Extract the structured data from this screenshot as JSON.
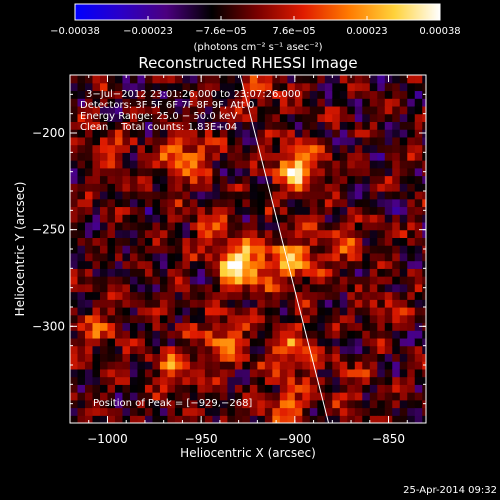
{
  "colorbar": {
    "min": -0.00038,
    "max": 0.00038,
    "tick_labels": [
      "−0.00038",
      "−0.00023",
      "−7.6e−05",
      "7.6e−05",
      "0.00023",
      "0.00038"
    ],
    "unit_label": "(photons cm⁻² s⁻¹ asec⁻²)",
    "colors": [
      "#0000ff",
      "#2a00c8",
      "#4b007f",
      "#000000",
      "#7a0000",
      "#e01b00",
      "#ff7a00",
      "#ffd23a",
      "#ffffff"
    ]
  },
  "title": "Reconstructed RHESSI Image",
  "info": {
    "time_range": "3−Jul−2012 23:01:26.000 to 23:07:26.000",
    "detectors": "Detectors: 3F 5F 6F 7F 8F 9F, Att 0",
    "energy": "Energy Range: 25.0 − 50.0 keV",
    "clean": "Clean    Total counts: 1.83E+04",
    "peak": "Position of Peak = [−929,−268]"
  },
  "footer": {
    "timestamp": "25-Apr-2014 09:32"
  },
  "chart_data": {
    "type": "heatmap",
    "title": "Reconstructed RHESSI Image",
    "xlabel": "Heliocentric X (arcsec)",
    "ylabel": "Heliocentric Y (arcsec)",
    "xlim": [
      -1020,
      -830
    ],
    "ylim": [
      -350,
      -170
    ],
    "x_ticks": [
      -1000,
      -950,
      -900,
      -850
    ],
    "x_tick_labels": [
      "−1000",
      "−950",
      "−900",
      "−850"
    ],
    "y_ticks": [
      -300,
      -250,
      -200
    ],
    "y_tick_labels": [
      "−300",
      "−250",
      "−200"
    ],
    "peak": [
      -929,
      -268
    ],
    "limb_line": {
      "x": [
        -1000,
        -882
      ],
      "y": [
        100,
        -350
      ]
    },
    "sources": [
      {
        "x": -929,
        "y": -268,
        "value": 0.00038
      },
      {
        "x": -898,
        "y": -218,
        "value": 0.00033
      },
      {
        "x": -958,
        "y": -212,
        "value": 0.00024
      },
      {
        "x": -902,
        "y": -266,
        "value": 0.00028
      },
      {
        "x": -938,
        "y": -308,
        "value": 0.00022
      },
      {
        "x": -902,
        "y": -312,
        "value": 0.0002
      },
      {
        "x": -965,
        "y": -322,
        "value": 0.00016
      },
      {
        "x": -1000,
        "y": -208,
        "value": 0.00012
      },
      {
        "x": -1005,
        "y": -300,
        "value": 0.00014
      },
      {
        "x": -905,
        "y": -343,
        "value": 0.00018
      },
      {
        "x": -875,
        "y": -258,
        "value": 0.00012
      },
      {
        "x": -948,
        "y": -248,
        "value": 0.00013
      },
      {
        "x": -915,
        "y": -178,
        "value": 0.0001
      },
      {
        "x": -850,
        "y": -290,
        "value": 9e-05
      },
      {
        "x": -870,
        "y": -330,
        "value": 0.0001
      }
    ]
  }
}
